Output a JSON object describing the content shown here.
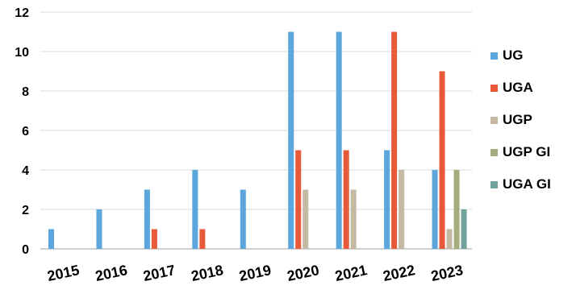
{
  "chart_data": {
    "type": "bar",
    "title": "",
    "xlabel": "",
    "ylabel": "",
    "categories": [
      "2015",
      "2016",
      "2017",
      "2018",
      "2019",
      "2020",
      "2021",
      "2022",
      "2023"
    ],
    "ylim": [
      0,
      12
    ],
    "yticks": [
      "0",
      "2",
      "4",
      "6",
      "8",
      "10",
      "12"
    ],
    "grid": "horizontal",
    "legend_position": "right",
    "series": [
      {
        "name": "UG",
        "color": "#5BA6DD",
        "values": [
          1,
          2,
          3,
          4,
          3,
          11,
          11,
          5,
          4
        ]
      },
      {
        "name": "UGA",
        "color": "#E8593A",
        "values": [
          0,
          0,
          1,
          1,
          0,
          5,
          5,
          11,
          9
        ]
      },
      {
        "name": "UGP",
        "color": "#C5B9A3",
        "values": [
          0,
          0,
          0,
          0,
          0,
          3,
          3,
          4,
          1
        ]
      },
      {
        "name": "UGP GI",
        "color": "#A3AD7E",
        "values": [
          0,
          0,
          0,
          0,
          0,
          0,
          0,
          0,
          4
        ]
      },
      {
        "name": "UGA GI",
        "color": "#6FA39B",
        "values": [
          0,
          0,
          0,
          0,
          0,
          0,
          0,
          0,
          2
        ]
      }
    ]
  }
}
